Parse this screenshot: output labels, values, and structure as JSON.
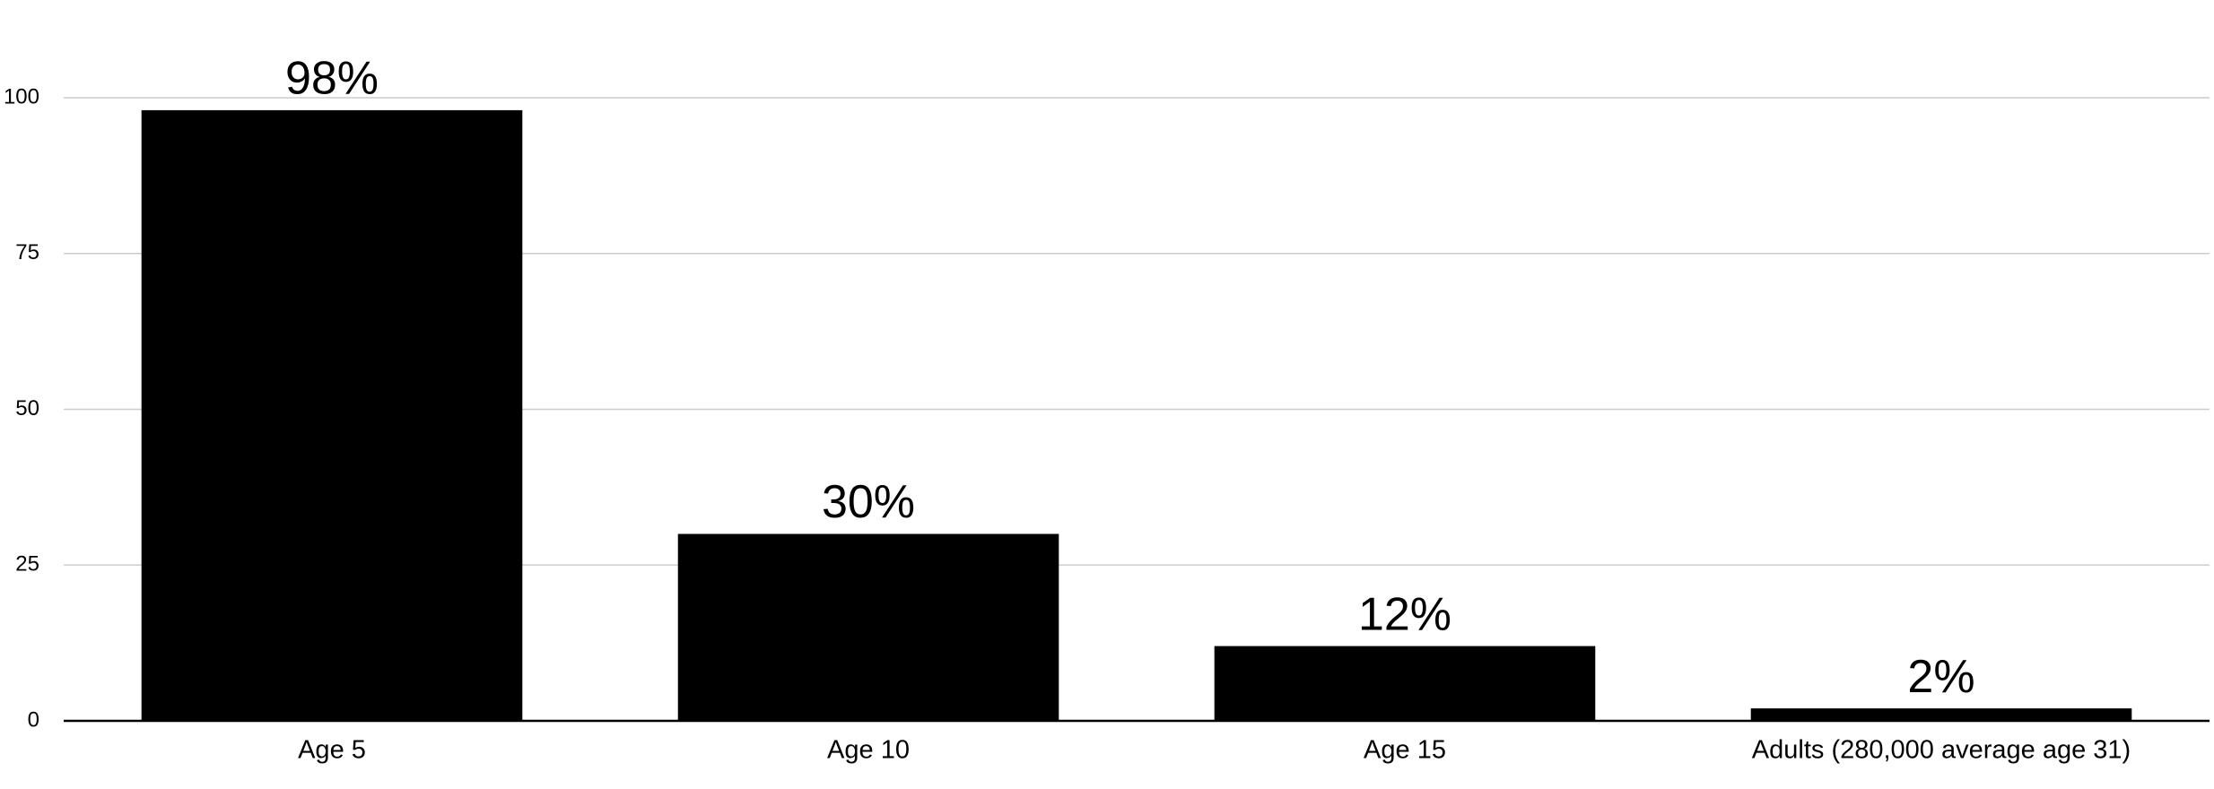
{
  "chart_data": {
    "type": "bar",
    "categories": [
      "Age 5",
      "Age 10",
      "Age 15",
      "Adults (280,000 average age 31)"
    ],
    "values": [
      98,
      30,
      12,
      2
    ],
    "value_labels": [
      "98%",
      "30%",
      "12%",
      "2%"
    ],
    "color": "#000000",
    "ylim": [
      0,
      100
    ],
    "yticks": [
      0,
      25,
      50,
      75,
      100
    ],
    "grid": true
  }
}
